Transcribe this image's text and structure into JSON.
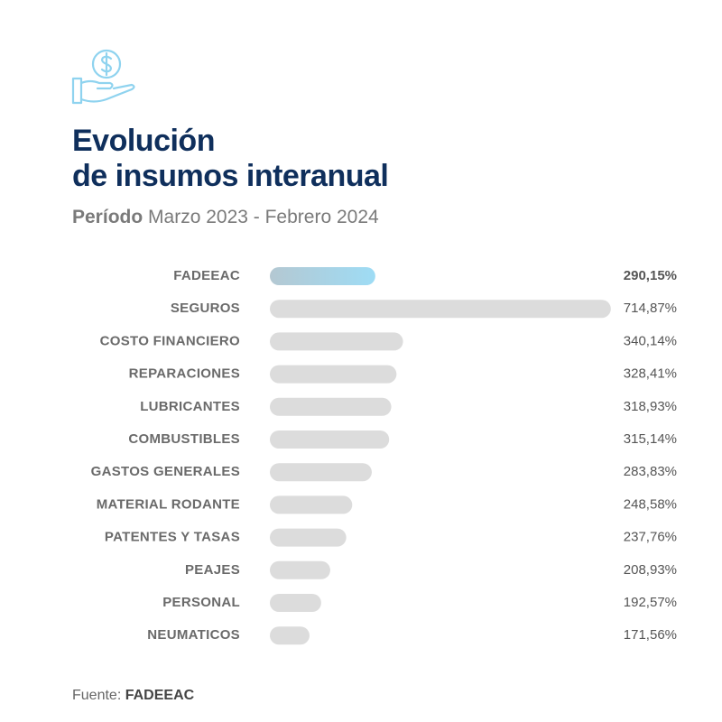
{
  "chart_data": {
    "type": "bar",
    "orientation": "horizontal",
    "title_lines": [
      "Evolución",
      "de insumos interanual"
    ],
    "subtitle": {
      "label": "Período",
      "text": "Marzo 2023 - Febrero 2024"
    },
    "categories": [
      "FADEEAC",
      "SEGUROS",
      "COSTO FINANCIERO",
      "REPARACIONES",
      "LUBRICANTES",
      "COMBUSTIBLES",
      "GASTOS GENERALES",
      "MATERIAL RODANTE",
      "PATENTES Y TASAS",
      "PEAJES",
      "PERSONAL",
      "NEUMATICOS"
    ],
    "values": [
      290.15,
      714.87,
      340.14,
      328.41,
      318.93,
      315.14,
      283.83,
      248.58,
      237.76,
      208.93,
      192.57,
      171.56
    ],
    "value_labels": [
      "290,15%",
      "714,87%",
      "340,14%",
      "328,41%",
      "318,93%",
      "315,14%",
      "283,83%",
      "248,58%",
      "237,76%",
      "208,93%",
      "192,57%",
      "171,56%"
    ],
    "colors": [
      "#9edcf5",
      "#dcdcdc",
      "#dcdcdc",
      "#dcdcdc",
      "#dcdcdc",
      "#dcdcdc",
      "#dcdcdc",
      "#dcdcdc",
      "#dcdcdc",
      "#dcdcdc",
      "#dcdcdc",
      "#dcdcdc"
    ],
    "xlim": [
      100,
      720
    ],
    "source": {
      "label": "Fuente:",
      "text": "FADEEAC"
    }
  }
}
